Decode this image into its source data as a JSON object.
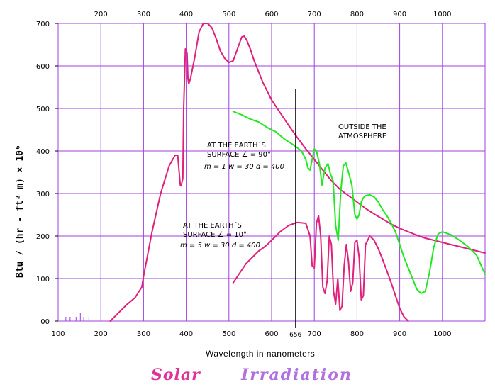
{
  "chart_data": {
    "type": "line",
    "title": "Solar",
    "title2": "Irradiation",
    "xlabel": "Wavelength in nanometers",
    "ylabel": "Btu / (hr - ft² m) × 10⁶",
    "ylim": [
      0,
      700
    ],
    "grid": true,
    "colors": {
      "grid": "#a040e0",
      "outside": "#e0207a",
      "surface90": "#22e822",
      "surface10": "#e0207a",
      "marker": "#000000"
    },
    "y_ticks": [
      "00",
      "100",
      "200",
      "300",
      "400",
      "500",
      "600",
      "700"
    ],
    "x_bottom_ticks": [
      "100",
      "200",
      "300",
      "400",
      "500",
      "600",
      "700",
      "800",
      "900",
      "1000"
    ],
    "x_top_ticks": [
      "200",
      "300",
      "400",
      "500",
      "600",
      "700",
      "800",
      "900",
      "1000"
    ],
    "marker_label": "656",
    "annotations": {
      "outside": [
        "OUTSIDE THE",
        "ATMOSPHERE"
      ],
      "surface90": [
        "AT THE EARTH´S",
        "SURFACE  ∠ = 90°",
        "m = 1  w = 30  d = 400"
      ],
      "surface10": [
        "AT THE EARTH´S",
        "SURFACE  ∠ = 10°",
        "m = 5  w = 30  d = 400"
      ]
    },
    "series": [
      {
        "key": "outside",
        "x": [
          222,
          240,
          260,
          280,
          296,
          300,
          320,
          340,
          360,
          374,
          380,
          386,
          388,
          392,
          394,
          398,
          400,
          402,
          404,
          406,
          410,
          420,
          430,
          440,
          450,
          460,
          470,
          480,
          490,
          500,
          510,
          520,
          530,
          536,
          542,
          550,
          560,
          580,
          600,
          620,
          640,
          660,
          680,
          700,
          720,
          740,
          760,
          780,
          800,
          820,
          840,
          860,
          880,
          900,
          920,
          940,
          960,
          980,
          1000,
          1020,
          1040,
          1060,
          1080,
          1100
        ],
        "y": [
          0,
          18,
          38,
          55,
          80,
          105,
          210,
          300,
          365,
          390,
          390,
          320,
          318,
          335,
          500,
          640,
          635,
          630,
          570,
          558,
          570,
          620,
          680,
          700,
          700,
          690,
          665,
          635,
          618,
          608,
          612,
          640,
          668,
          670,
          660,
          640,
          610,
          560,
          520,
          490,
          460,
          432,
          405,
          380,
          355,
          330,
          310,
          295,
          280,
          265,
          252,
          240,
          228,
          218,
          210,
          202,
          195,
          190,
          185,
          180,
          175,
          170,
          165,
          160
        ]
      },
      {
        "key": "surface90",
        "x": [
          510,
          530,
          550,
          570,
          590,
          610,
          630,
          650,
          670,
          680,
          685,
          690,
          695,
          700,
          705,
          712,
          718,
          725,
          732,
          738,
          744,
          750,
          756,
          762,
          768,
          774,
          780,
          788,
          795,
          800,
          805,
          810,
          815,
          820,
          830,
          840,
          850,
          860,
          870,
          880,
          890,
          900,
          910,
          920,
          930,
          940,
          950,
          960,
          970,
          980,
          990,
          1000,
          1020,
          1040,
          1060,
          1080,
          1100
        ],
        "y": [
          493,
          485,
          475,
          468,
          455,
          445,
          428,
          415,
          400,
          380,
          360,
          355,
          380,
          405,
          400,
          370,
          320,
          360,
          370,
          345,
          330,
          225,
          190,
          305,
          365,
          372,
          350,
          320,
          250,
          240,
          250,
          280,
          290,
          295,
          297,
          292,
          280,
          262,
          248,
          230,
          210,
          180,
          150,
          125,
          100,
          75,
          65,
          70,
          115,
          175,
          205,
          210,
          203,
          190,
          175,
          155,
          110
        ]
      },
      {
        "key": "surface10",
        "x": [
          510,
          520,
          530,
          540,
          550,
          560,
          570,
          580,
          590,
          600,
          620,
          640,
          660,
          680,
          690,
          695,
          700,
          705,
          710,
          715,
          720,
          725,
          730,
          735,
          740,
          745,
          750,
          755,
          760,
          765,
          770,
          775,
          780,
          785,
          790,
          795,
          800,
          805,
          810,
          815,
          820,
          830,
          840,
          850,
          860,
          870,
          880,
          890,
          900,
          910,
          920
        ],
        "y": [
          90,
          105,
          120,
          135,
          145,
          155,
          165,
          172,
          180,
          190,
          210,
          225,
          232,
          230,
          200,
          130,
          125,
          230,
          248,
          200,
          80,
          65,
          95,
          200,
          180,
          70,
          40,
          100,
          25,
          35,
          130,
          180,
          140,
          70,
          90,
          185,
          190,
          150,
          50,
          60,
          180,
          200,
          190,
          170,
          145,
          118,
          90,
          60,
          30,
          10,
          0
        ]
      }
    ]
  }
}
